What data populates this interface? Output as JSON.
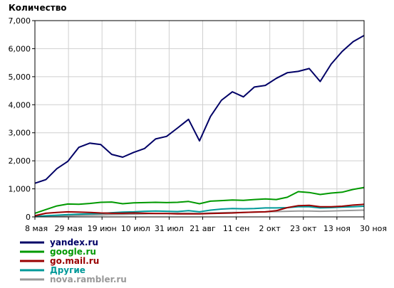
{
  "chart_data": {
    "type": "line",
    "title": "Количество",
    "xlabel": "",
    "ylabel": "",
    "ylim": [
      0,
      7000
    ],
    "yticks": [
      0,
      1000,
      2000,
      3000,
      4000,
      5000,
      6000,
      7000
    ],
    "ytick_labels": [
      "0",
      "1,000",
      "2,000",
      "3,000",
      "4,000",
      "5,000",
      "6,000",
      "7,000"
    ],
    "x_tick_labels": [
      "8 мая",
      "29 мая",
      "19 июн",
      "10 июл",
      "31 июл",
      "21 авг",
      "11 сен",
      "2 окт",
      "23 окт",
      "13 ноя",
      "30 ноя"
    ],
    "x_tick_days": [
      0,
      21,
      42,
      63,
      84,
      105,
      126,
      147,
      168,
      189,
      206
    ],
    "x_start_date": "2006-05-08",
    "grid": true,
    "legend_position": "bottom-left",
    "x": [
      "8 мая",
      "15 мая",
      "22 мая",
      "29 мая",
      "5 июн",
      "12 июн",
      "19 июн",
      "26 июн",
      "3 июл",
      "10 июл",
      "17 июл",
      "24 июл",
      "31 июл",
      "7 авг",
      "14 авг",
      "21 авг",
      "28 авг",
      "4 сен",
      "11 сен",
      "18 сен",
      "25 сен",
      "2 окт",
      "9 окт",
      "16 окт",
      "23 окт",
      "30 окт",
      "6 ноя",
      "13 ноя",
      "20 ноя",
      "27 ноя",
      "30 ноя"
    ],
    "series": [
      {
        "name": "yandex.ru",
        "color": "#000066",
        "values": [
          1200,
          1330,
          1720,
          1980,
          2480,
          2630,
          2580,
          2230,
          2130,
          2300,
          2440,
          2780,
          2870,
          3170,
          3480,
          2710,
          3580,
          4160,
          4460,
          4280,
          4630,
          4690,
          4940,
          5140,
          5190,
          5290,
          4830,
          5450,
          5900,
          6250,
          6470
        ]
      },
      {
        "name": "google.ru",
        "color": "#009900",
        "values": [
          130,
          260,
          390,
          460,
          450,
          480,
          520,
          530,
          470,
          500,
          510,
          520,
          510,
          520,
          550,
          470,
          560,
          580,
          600,
          590,
          620,
          640,
          620,
          700,
          900,
          870,
          800,
          850,
          880,
          980,
          1050
        ]
      },
      {
        "name": "go.mail.ru",
        "color": "#990000",
        "values": [
          40,
          130,
          160,
          180,
          170,
          160,
          140,
          130,
          130,
          140,
          130,
          120,
          120,
          110,
          110,
          110,
          120,
          130,
          140,
          160,
          170,
          180,
          220,
          330,
          400,
          410,
          360,
          360,
          380,
          420,
          450
        ]
      },
      {
        "name": "Другие",
        "color": "#009999",
        "values": [
          20,
          40,
          60,
          80,
          100,
          110,
          120,
          150,
          170,
          180,
          200,
          210,
          200,
          190,
          220,
          180,
          240,
          280,
          300,
          290,
          300,
          320,
          320,
          330,
          360,
          360,
          320,
          330,
          350,
          360,
          380
        ]
      },
      {
        "name": "nova.rambler.ru",
        "color": "#999999",
        "values": [
          10,
          20,
          30,
          40,
          50,
          60,
          70,
          80,
          90,
          100,
          110,
          120,
          120,
          130,
          130,
          120,
          140,
          150,
          160,
          160,
          170,
          180,
          190,
          200,
          210,
          210,
          200,
          210,
          220,
          230,
          240
        ]
      }
    ]
  }
}
